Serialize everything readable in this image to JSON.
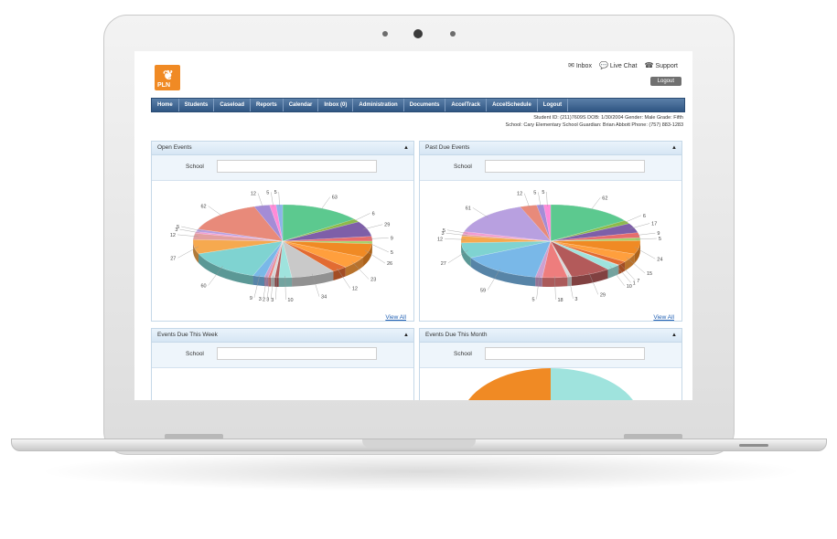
{
  "top_links": {
    "inbox": "Inbox",
    "live_chat": "Live Chat",
    "support": "Support"
  },
  "logo_text": "PLN",
  "logout_label": "Logout",
  "nav": [
    "Home",
    "Students",
    "Caseload",
    "Reports",
    "Calendar",
    "Inbox (0)",
    "Administration",
    "Documents",
    "AccelTrack",
    "AccelSchedule",
    "Logout"
  ],
  "student_info": {
    "line1": "Student ID: (211)7609S    DOB: 1/30/2004    Gender: Male    Grade: Fifth",
    "line2": "School: Cary Elementary School    Guardian: Brian Abbott    Phone: (757) 883-1283"
  },
  "panels": [
    {
      "title": "Open Events",
      "school_label": "School",
      "school_value": "",
      "view_all": "View All",
      "chart_data": {
        "type": "pie",
        "values": [
          63,
          6,
          29,
          9,
          5,
          26,
          23,
          12,
          34,
          10,
          3,
          3,
          2,
          3,
          9,
          60,
          27,
          12,
          3,
          5,
          62,
          12,
          5,
          5
        ]
      }
    },
    {
      "title": "Past Due Events",
      "school_label": "School",
      "school_value": "",
      "view_all": "View All",
      "chart_data": {
        "type": "pie",
        "values": [
          62,
          6,
          17,
          9,
          5,
          24,
          15,
          7,
          1,
          10,
          29,
          3,
          18,
          5,
          59,
          27,
          12,
          3,
          5,
          61,
          12,
          5,
          5
        ]
      }
    },
    {
      "title": "Events Due This Week",
      "school_label": "School",
      "school_value": "",
      "chart_data": {
        "type": "pie",
        "values": [
          1
        ]
      }
    },
    {
      "title": "Events Due This Month",
      "school_label": "School",
      "school_value": "",
      "chart_data": {
        "type": "pie",
        "values": [
          2,
          2
        ]
      }
    }
  ],
  "colors": {
    "nav": "#2f5683",
    "accent": "#f08a24",
    "link": "#1f5fb3"
  }
}
